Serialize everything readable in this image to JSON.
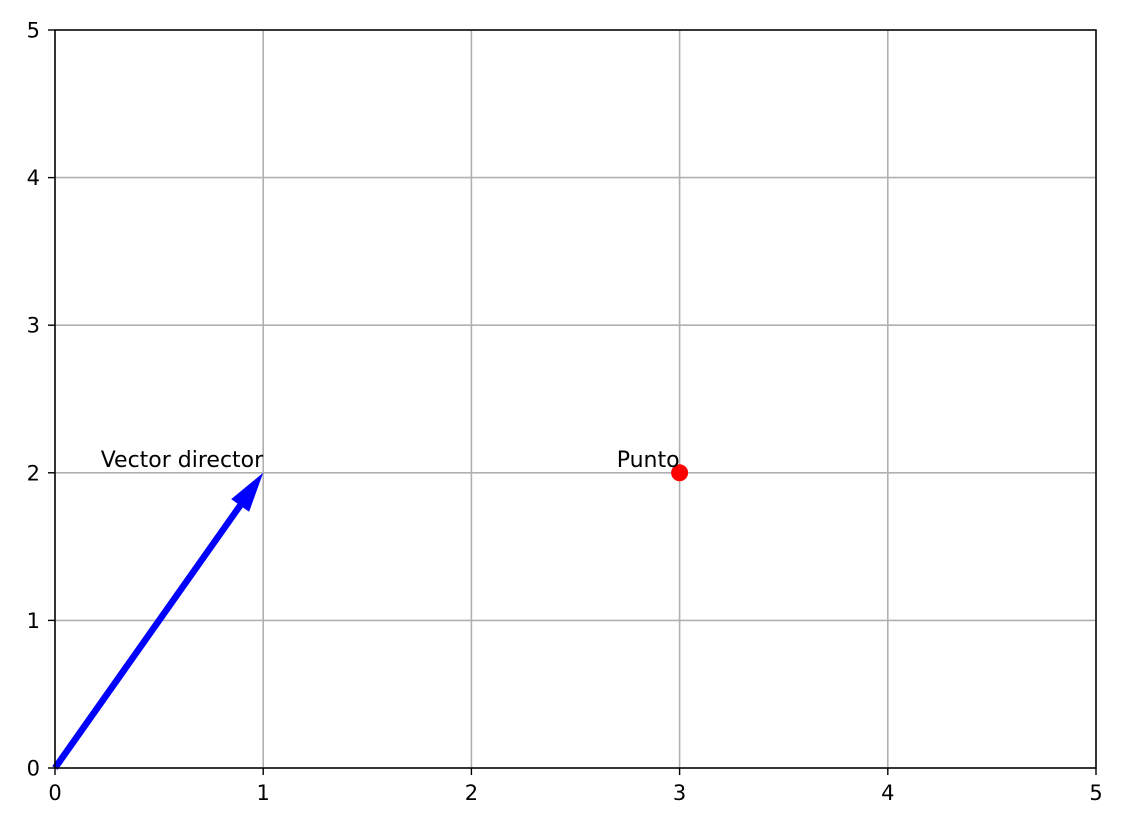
{
  "chart_data": {
    "type": "scatter",
    "title": "",
    "xlabel": "",
    "ylabel": "",
    "xlim": [
      0,
      5
    ],
    "ylim": [
      0,
      5
    ],
    "xticks": [
      0,
      1,
      2,
      3,
      4,
      5
    ],
    "yticks": [
      0,
      1,
      2,
      3,
      4,
      5
    ],
    "grid": true,
    "vectors": [
      {
        "name": "director",
        "x0": 0,
        "y0": 0,
        "dx": 1,
        "dy": 2,
        "color": "#0000ff",
        "label": "Vector director"
      }
    ],
    "points": [
      {
        "name": "punto",
        "x": 3,
        "y": 2,
        "color": "#ff0000",
        "label": "Punto"
      }
    ]
  },
  "colors": {
    "grid": "#b0b0b0",
    "axes": "#000000",
    "background": "#ffffff"
  }
}
